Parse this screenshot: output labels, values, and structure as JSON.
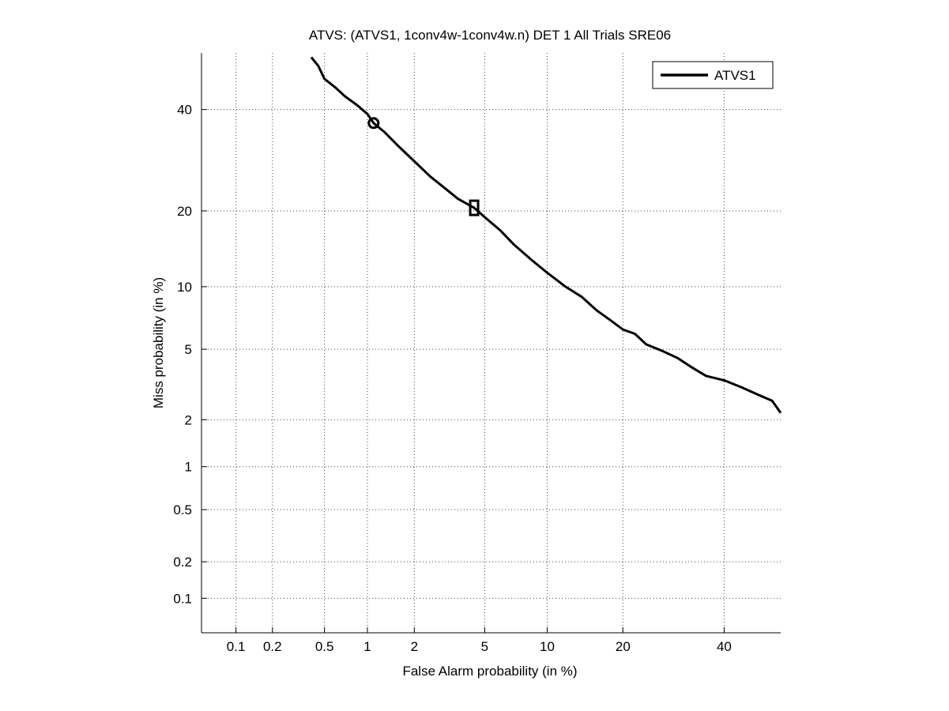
{
  "chart_data": {
    "type": "line",
    "title": "ATVS: (ATVS1, 1conv4w-1conv4w.n) DET 1 All Trials SRE06",
    "xlabel": "False Alarm probability (in %)",
    "ylabel": "Miss probability (in %)",
    "scale": "normal-deviate (probit)",
    "xlim": [
      0.05,
      53
    ],
    "ylim": [
      0.05,
      53
    ],
    "xticks": [
      0.1,
      0.2,
      0.5,
      1,
      2,
      5,
      10,
      20,
      40
    ],
    "xtick_labels": [
      "0.1",
      "0.2",
      "0.5",
      "1",
      "2",
      "5",
      "10",
      "20",
      "40"
    ],
    "yticks": [
      0.1,
      0.2,
      0.5,
      1,
      2,
      5,
      10,
      20,
      40
    ],
    "ytick_labels": [
      "0.1",
      "0.2",
      "0.5",
      "1",
      "2",
      "5",
      "10",
      "20",
      "40"
    ],
    "grid": true,
    "legend_position": "top-right",
    "series": [
      {
        "name": "ATVS1",
        "color": "#000000",
        "x": [
          0.4,
          0.45,
          0.5,
          0.6,
          0.7,
          0.85,
          1.0,
          1.1,
          1.3,
          1.6,
          2.0,
          2.5,
          3.0,
          3.6,
          4.4,
          5.0,
          6.0,
          7.0,
          8.5,
          10.0,
          12.0,
          14.0,
          16.0,
          18.0,
          20.0,
          22.0,
          24.0,
          27.0,
          30.0,
          33.0,
          36.0,
          40.0,
          44.0,
          48.0,
          51.0,
          53.0
        ],
        "y": [
          52.0,
          50.0,
          47.0,
          45.0,
          43.0,
          41.0,
          39.0,
          37.0,
          35.0,
          32.0,
          29.0,
          26.0,
          24.0,
          22.0,
          20.5,
          19.0,
          17.0,
          15.0,
          13.0,
          11.5,
          10.0,
          9.0,
          7.8,
          7.0,
          6.3,
          6.0,
          5.3,
          4.9,
          4.5,
          4.0,
          3.6,
          3.4,
          3.1,
          2.8,
          2.6,
          2.2
        ]
      }
    ],
    "markers": [
      {
        "name": "circle-marker",
        "shape": "circle",
        "x": 1.1,
        "y": 37.0
      },
      {
        "name": "square-marker",
        "shape": "square",
        "x": 4.4,
        "y": 20.5
      }
    ]
  }
}
